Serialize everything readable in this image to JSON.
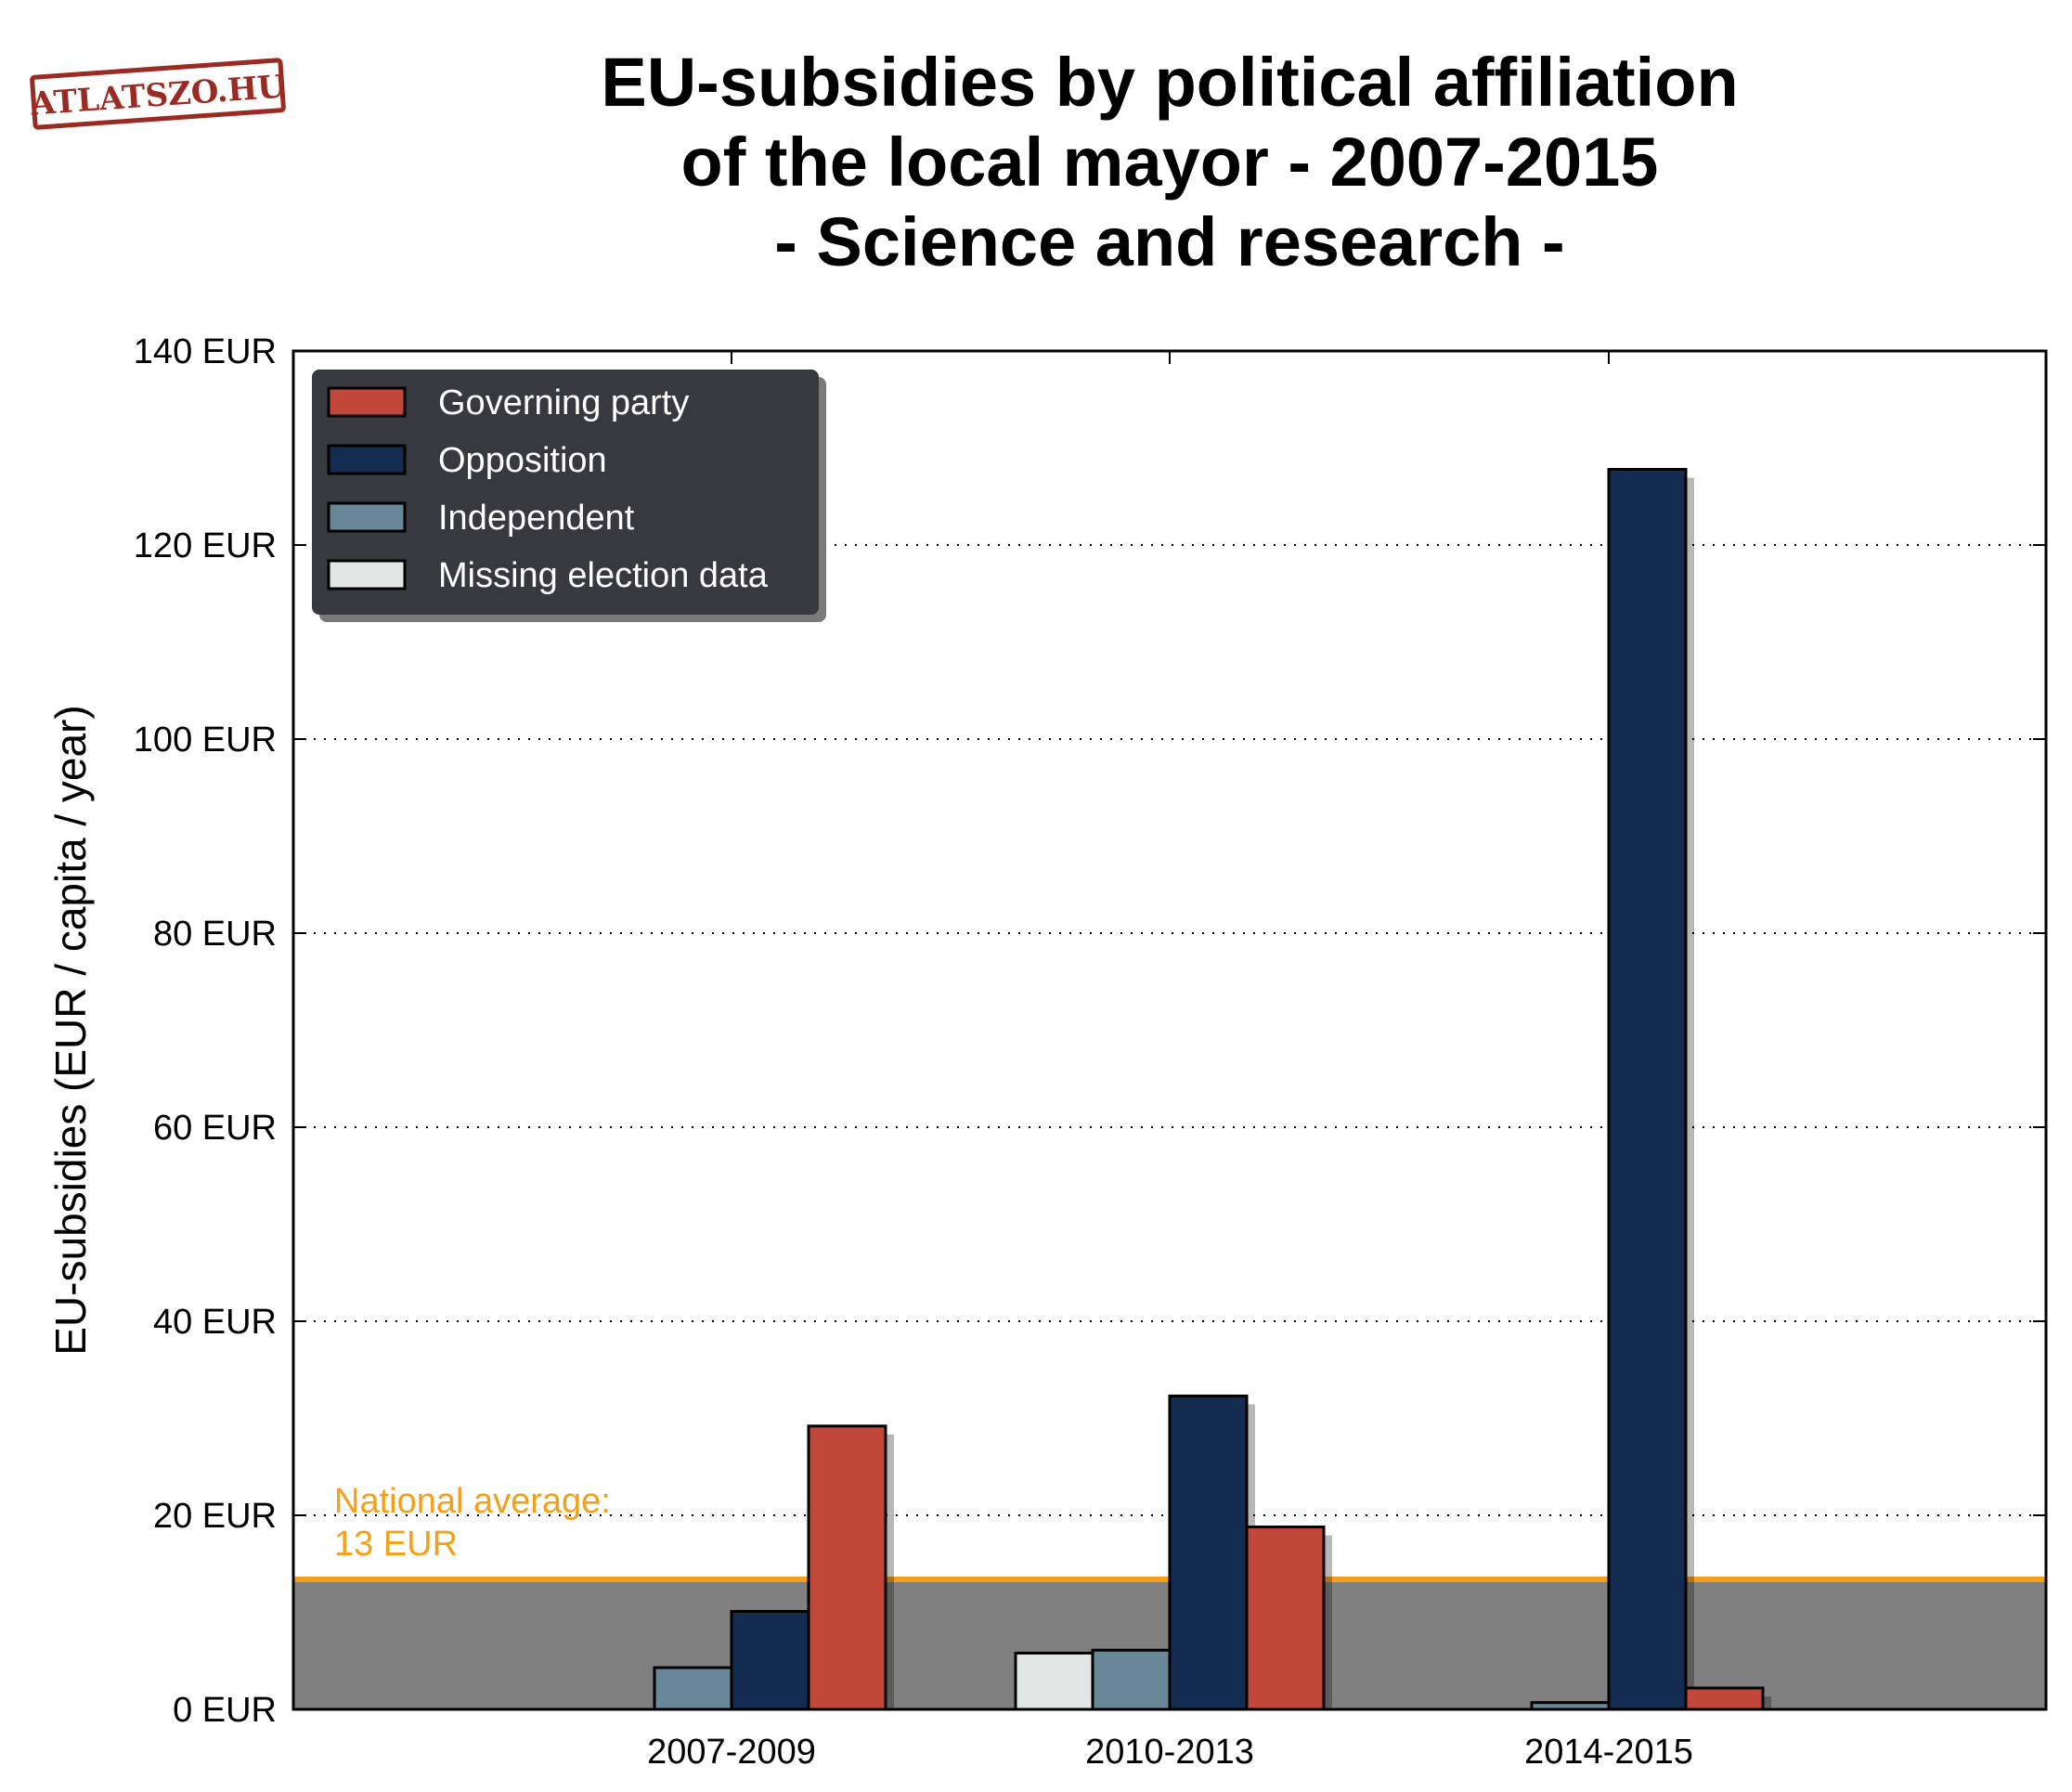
{
  "logo": {
    "text": "ATLATSZO.HU",
    "color": "#9b2b22"
  },
  "title_lines": [
    "EU-subsidies by political affiliation",
    "of the local mayor - 2007-2015",
    "- Science and research -"
  ],
  "chart_data": {
    "type": "bar",
    "title": "EU-subsidies by political affiliation of the local mayor - 2007-2015 - Science and research -",
    "xlabel": "",
    "ylabel": "EU-subsidies (EUR / capita / year)",
    "ylim": [
      0,
      140
    ],
    "yticks": [
      0,
      20,
      40,
      60,
      80,
      100,
      120,
      140
    ],
    "ytick_suffix": " EUR",
    "grid": "horizontal-dotted",
    "legend_position": "top-left",
    "categories": [
      "2007-2009",
      "2010-2013",
      "2014-2015"
    ],
    "series": [
      {
        "name": "Missing election data",
        "color": "#e1e6e4",
        "values": [
          0,
          5.8,
          0
        ]
      },
      {
        "name": "Independent",
        "color": "#688799",
        "values": [
          4.3,
          6.1,
          0.7
        ]
      },
      {
        "name": "Opposition",
        "color": "#142c4f",
        "values": [
          10.1,
          32.3,
          127.8
        ]
      },
      {
        "name": "Governing party",
        "color": "#c0473a",
        "values": [
          29.2,
          18.8,
          2.2
        ]
      }
    ],
    "legend_order": [
      "Governing party",
      "Opposition",
      "Independent",
      "Missing election data"
    ],
    "reference_line": {
      "value": 13.4,
      "label_lines": [
        "National average:",
        "13 EUR"
      ],
      "line_color": "#f5a01a",
      "band_color": "#808080"
    }
  }
}
